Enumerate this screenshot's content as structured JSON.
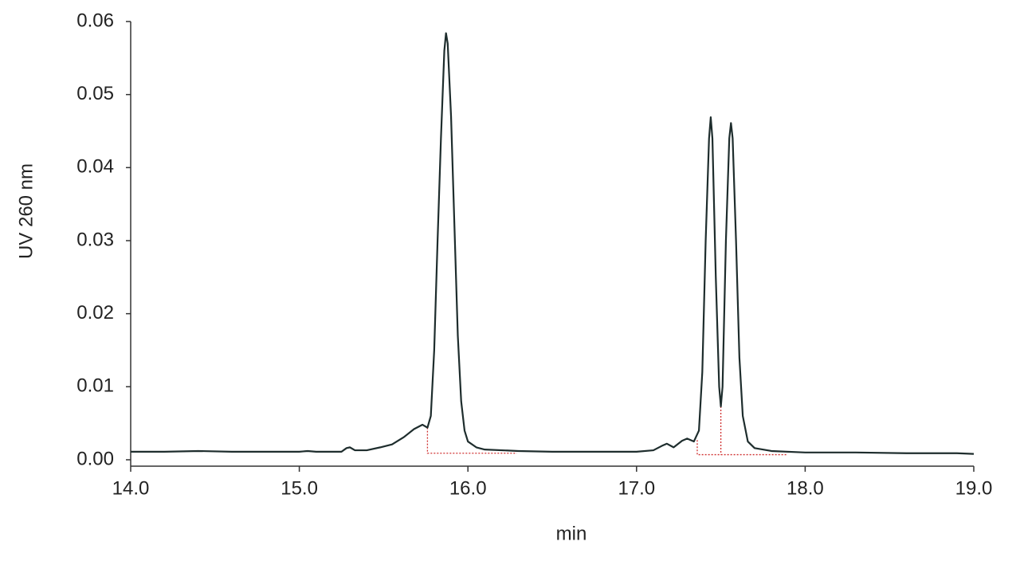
{
  "chart_data": {
    "type": "line",
    "xlabel": "min",
    "ylabel": "UV 260 nm",
    "xlim": [
      14,
      19
    ],
    "ylim": [
      -0.0008,
      0.06
    ],
    "xticks": [
      {
        "value": 14,
        "label": "14.0"
      },
      {
        "value": 15,
        "label": "15.0"
      },
      {
        "value": 16,
        "label": "16.0"
      },
      {
        "value": 17,
        "label": "17.0"
      },
      {
        "value": 18,
        "label": "18.0"
      },
      {
        "value": 19,
        "label": "19.0"
      }
    ],
    "yticks": [
      {
        "value": 0,
        "label": "0.00"
      },
      0.01,
      0.02,
      0.03,
      0.04,
      0.05,
      0.06
    ],
    "grid": false,
    "series": [
      {
        "color": "#1e2d2d",
        "x": [
          14.0,
          14.2,
          14.4,
          14.6,
          14.8,
          15.0,
          15.05,
          15.1,
          15.25,
          15.28,
          15.3,
          15.33,
          15.4,
          15.48,
          15.55,
          15.62,
          15.68,
          15.73,
          15.76,
          15.78,
          15.8,
          15.82,
          15.84,
          15.86,
          15.87,
          15.88,
          15.9,
          15.92,
          15.94,
          15.96,
          15.98,
          16.0,
          16.05,
          16.1,
          16.3,
          16.5,
          16.7,
          17.0,
          17.1,
          17.15,
          17.18,
          17.22,
          17.27,
          17.3,
          17.34,
          17.37,
          17.39,
          17.41,
          17.43,
          17.44,
          17.45,
          17.47,
          17.49,
          17.5,
          17.51,
          17.53,
          17.55,
          17.56,
          17.57,
          17.59,
          17.61,
          17.63,
          17.66,
          17.7,
          17.8,
          18.0,
          18.3,
          18.6,
          18.9,
          19.0
        ],
        "values": [
          0.0011,
          0.0011,
          0.0012,
          0.0011,
          0.0011,
          0.0011,
          0.0012,
          0.0011,
          0.0011,
          0.0016,
          0.0017,
          0.0013,
          0.0013,
          0.0017,
          0.0021,
          0.0031,
          0.0042,
          0.0048,
          0.0044,
          0.006,
          0.015,
          0.03,
          0.044,
          0.056,
          0.0584,
          0.057,
          0.047,
          0.032,
          0.017,
          0.008,
          0.004,
          0.0025,
          0.0017,
          0.0014,
          0.0012,
          0.0011,
          0.0011,
          0.0011,
          0.0013,
          0.0019,
          0.0022,
          0.0017,
          0.0026,
          0.0029,
          0.0025,
          0.004,
          0.012,
          0.03,
          0.044,
          0.0469,
          0.044,
          0.025,
          0.01,
          0.0073,
          0.01,
          0.03,
          0.044,
          0.0461,
          0.044,
          0.03,
          0.014,
          0.006,
          0.0025,
          0.0016,
          0.0012,
          0.001,
          0.001,
          0.0009,
          0.0009,
          0.0008
        ]
      }
    ],
    "integration_color": "#d03030",
    "integration_lines": [
      {
        "x": [
          15.76,
          15.76,
          16.29
        ],
        "y": [
          0.0044,
          0.0009,
          0.0009
        ]
      },
      {
        "x": [
          17.36,
          17.36,
          17.89
        ],
        "y": [
          0.0027,
          0.0007,
          0.0007
        ]
      },
      {
        "x": [
          17.5,
          17.5
        ],
        "y": [
          0.0073,
          0.0007
        ]
      }
    ]
  }
}
